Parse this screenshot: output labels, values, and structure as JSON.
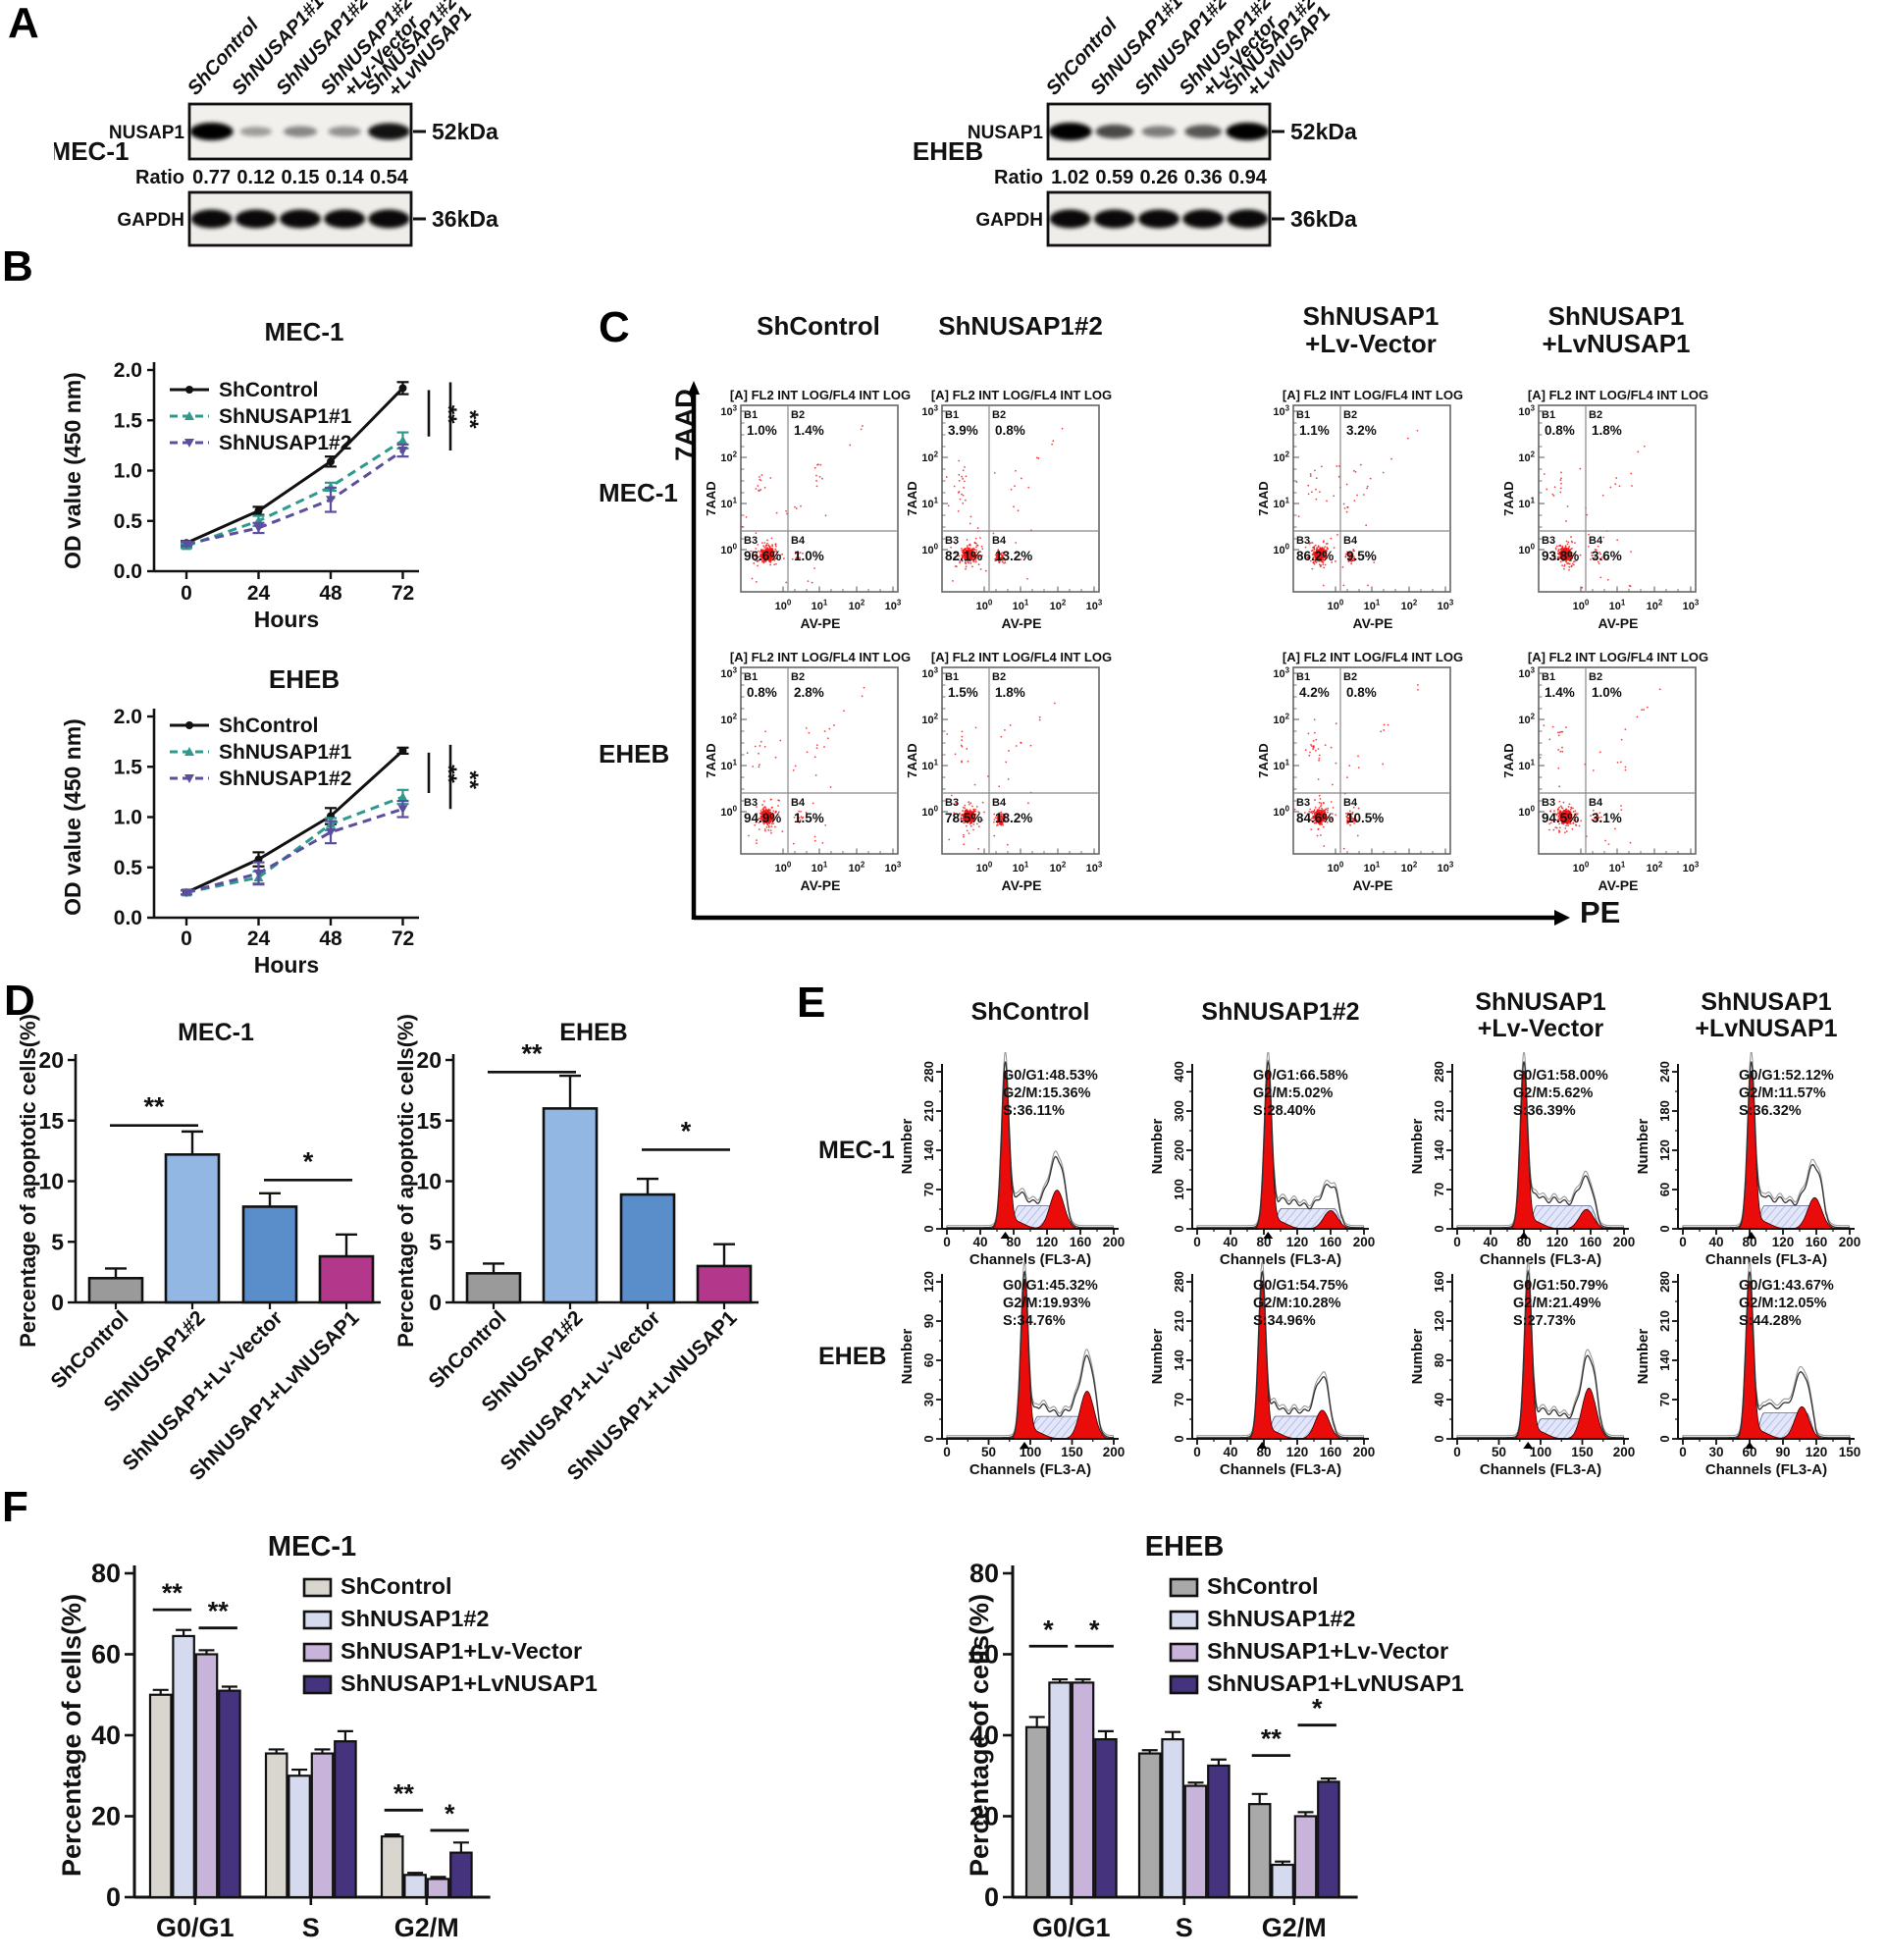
{
  "panels": {
    "a": "A",
    "b": "B",
    "c": "C",
    "d": "D",
    "e": "E",
    "f": "F"
  },
  "panel_a": {
    "lane_labels": [
      [
        "ShControl"
      ],
      [
        "ShNUSAP1#1"
      ],
      [
        "ShNUSAP1#2"
      ],
      [
        "ShNUSAP1#2",
        "+Lv-Vector"
      ],
      [
        "ShNUSAP1#2",
        "+LvNUSAP1"
      ]
    ],
    "blots": [
      {
        "cell_line": "MEC-1",
        "protein_label": "NUSAP1",
        "protein_marker": "52kDa",
        "ratio_label": "Ratio",
        "ratios": [
          "0.77",
          "0.12",
          "0.15",
          "0.14",
          "0.54"
        ],
        "loading_label": "GAPDH",
        "loading_marker": "36kDa",
        "band_intensities": [
          1.0,
          0.18,
          0.3,
          0.25,
          0.9
        ]
      },
      {
        "cell_line": "EHEB",
        "protein_label": "NUSAP1",
        "protein_marker": "52kDa",
        "ratio_label": "Ratio",
        "ratios": [
          "1.02",
          "0.59",
          "0.26",
          "0.36",
          "0.94"
        ],
        "loading_label": "GAPDH",
        "loading_marker": "36kDa",
        "band_intensities": [
          1.0,
          0.62,
          0.35,
          0.55,
          1.0
        ]
      }
    ]
  },
  "panel_c": {
    "columns": [
      [
        "ShControl"
      ],
      [
        "ShNUSAP1#2"
      ],
      [
        "ShNUSAP1",
        "+Lv-Vector"
      ],
      [
        "ShNUSAP1",
        "+LvNUSAP1"
      ]
    ],
    "row_labels": [
      "MEC-1",
      "EHEB"
    ],
    "y_axis_label": "7AAD",
    "x_axis_label": "PE"
  },
  "panel_e": {
    "columns": [
      [
        "ShControl"
      ],
      [
        "ShNUSAP1#2"
      ],
      [
        "ShNUSAP1",
        "+Lv-Vector"
      ],
      [
        "ShNUSAP1",
        "+LvNUSAP1"
      ]
    ],
    "row_labels": [
      "MEC-1",
      "EHEB"
    ]
  },
  "chart_data": [
    {
      "id": "B-MEC1",
      "type": "line",
      "title": "MEC-1",
      "xlabel": "Hours",
      "ylabel": "OD value (450 nm)",
      "x": [
        0,
        24,
        48,
        72
      ],
      "ylim": [
        0,
        2.0
      ],
      "yticks": [
        "0.0",
        "0.5",
        "1.0",
        "1.5",
        "2.0"
      ],
      "series": [
        {
          "name": "ShControl",
          "color": "#111111",
          "dash": false,
          "marker": "circle",
          "values": [
            0.28,
            0.6,
            1.09,
            1.82
          ],
          "errors": [
            0.02,
            0.04,
            0.05,
            0.06
          ]
        },
        {
          "name": "ShNUSAP1#1",
          "color": "#2d9a8c",
          "dash": true,
          "marker": "tri-up",
          "values": [
            0.25,
            0.5,
            0.84,
            1.3
          ],
          "errors": [
            0.02,
            0.05,
            0.04,
            0.08
          ]
        },
        {
          "name": "ShNUSAP1#2",
          "color": "#5c4e9e",
          "dash": true,
          "marker": "tri-down",
          "values": [
            0.27,
            0.43,
            0.71,
            1.2
          ],
          "errors": [
            0.02,
            0.05,
            0.12,
            0.06
          ]
        }
      ],
      "significance": [
        "**",
        "**"
      ]
    },
    {
      "id": "B-EHEB",
      "type": "line",
      "title": "EHEB",
      "xlabel": "Hours",
      "ylabel": "OD value (450 nm)",
      "x": [
        0,
        24,
        48,
        72
      ],
      "ylim": [
        0,
        2.0
      ],
      "yticks": [
        "0.0",
        "0.5",
        "1.0",
        "1.5",
        "2.0"
      ],
      "series": [
        {
          "name": "ShControl",
          "color": "#111111",
          "dash": false,
          "marker": "circle",
          "values": [
            0.25,
            0.58,
            1.01,
            1.66
          ],
          "errors": [
            0.02,
            0.07,
            0.08,
            0.03
          ]
        },
        {
          "name": "ShNUSAP1#1",
          "color": "#2d9a8c",
          "dash": true,
          "marker": "tri-up",
          "values": [
            0.25,
            0.4,
            0.93,
            1.2
          ],
          "errors": [
            0.02,
            0.06,
            0.06,
            0.07
          ]
        },
        {
          "name": "ShNUSAP1#2",
          "color": "#5c4e9e",
          "dash": true,
          "marker": "tri-down",
          "values": [
            0.25,
            0.44,
            0.85,
            1.08
          ],
          "errors": [
            0.02,
            0.11,
            0.11,
            0.08
          ]
        }
      ],
      "significance": [
        "**",
        "**"
      ]
    },
    {
      "id": "D-MEC1",
      "type": "bar",
      "title": "MEC-1",
      "ylabel": "Percentage of apoptotic cells(%)",
      "ylim": [
        0,
        20
      ],
      "yticks": [
        0,
        5,
        10,
        15,
        20
      ],
      "categories": [
        "ShControl",
        "ShNUSAP1#2",
        "ShNUSAP1+Lv-Vector",
        "ShNUSAP1+LvNUSAP1"
      ],
      "values": [
        2.0,
        12.2,
        7.9,
        3.8
      ],
      "errors": [
        0.8,
        1.9,
        1.1,
        1.8
      ],
      "colors": [
        "#9a9a9a",
        "#93b7e3",
        "#5a8ecb",
        "#b3388c"
      ],
      "significance": [
        {
          "pair": [
            0,
            1
          ],
          "label": "**",
          "y": 14.6
        },
        {
          "pair": [
            2,
            3
          ],
          "label": "*",
          "y": 10.1
        }
      ]
    },
    {
      "id": "D-EHEB",
      "type": "bar",
      "title": "EHEB",
      "ylabel": "Percentage of apoptotic cells(%)",
      "ylim": [
        0,
        20
      ],
      "yticks": [
        0,
        5,
        10,
        15,
        20
      ],
      "categories": [
        "ShControl",
        "ShNUSAP1#2",
        "ShNUSAP1+Lv-Vector",
        "ShNUSAP1+LvNUSAP1"
      ],
      "values": [
        2.4,
        16.0,
        8.9,
        3.0
      ],
      "errors": [
        0.8,
        2.7,
        1.3,
        1.8
      ],
      "colors": [
        "#9a9a9a",
        "#93b7e3",
        "#5a8ecb",
        "#b3388c"
      ],
      "significance": [
        {
          "pair": [
            0,
            1
          ],
          "label": "**",
          "y": 19.0
        },
        {
          "pair": [
            2,
            3
          ],
          "label": "*",
          "y": 12.6
        }
      ]
    },
    {
      "id": "F-MEC1",
      "type": "grouped_bar",
      "title": "MEC-1",
      "ylabel": "Percentage of cells(%)",
      "ylim": [
        0,
        80
      ],
      "yticks": [
        0,
        20,
        40,
        60,
        80
      ],
      "categories": [
        "G0/G1",
        "S",
        "G2/M"
      ],
      "series": [
        {
          "name": "ShControl",
          "color": "#d9d6cf",
          "values": [
            50,
            35.5,
            15
          ],
          "errors": [
            1.2,
            1.0,
            0.5
          ]
        },
        {
          "name": "ShNUSAP1#2",
          "color": "#d6daee",
          "values": [
            64.5,
            30,
            5.5
          ],
          "errors": [
            1.5,
            1.5,
            0.5
          ]
        },
        {
          "name": "ShNUSAP1+Lv-Vector",
          "color": "#c8b4da",
          "values": [
            60,
            35.5,
            4.5
          ],
          "errors": [
            1.0,
            1.0,
            0.5
          ]
        },
        {
          "name": "ShNUSAP1+LvNUSAP1",
          "color": "#46337e",
          "values": [
            51,
            38.5,
            11
          ],
          "errors": [
            1.0,
            2.5,
            2.5
          ]
        }
      ],
      "significance": [
        {
          "group": 0,
          "pair": [
            0,
            1
          ],
          "label": "**",
          "y": 71
        },
        {
          "group": 0,
          "pair": [
            2,
            3
          ],
          "label": "**",
          "y": 66.5
        },
        {
          "group": 2,
          "pair": [
            0,
            1
          ],
          "label": "**",
          "y": 21.5
        },
        {
          "group": 2,
          "pair": [
            2,
            3
          ],
          "label": "*",
          "y": 16.5
        }
      ]
    },
    {
      "id": "F-EHEB",
      "type": "grouped_bar",
      "title": "EHEB",
      "ylabel": "Percentage of cells(%)",
      "ylim": [
        0,
        80
      ],
      "yticks": [
        0,
        20,
        40,
        60,
        80
      ],
      "categories": [
        "G0/G1",
        "S",
        "G2/M"
      ],
      "series": [
        {
          "name": "ShControl",
          "color": "#a9a9a9",
          "values": [
            42,
            35.5,
            23
          ],
          "errors": [
            2.5,
            0.8,
            2.5
          ]
        },
        {
          "name": "ShNUSAP1#2",
          "color": "#d6daee",
          "values": [
            53,
            39,
            8
          ],
          "errors": [
            0.8,
            1.8,
            0.8
          ]
        },
        {
          "name": "ShNUSAP1+Lv-Vector",
          "color": "#c8b4da",
          "values": [
            53,
            27.5,
            20
          ],
          "errors": [
            0.8,
            0.8,
            1.0
          ]
        },
        {
          "name": "ShNUSAP1+LvNUSAP1",
          "color": "#46337e",
          "values": [
            39,
            32.5,
            28.5
          ],
          "errors": [
            2.0,
            1.5,
            0.8
          ]
        }
      ],
      "significance": [
        {
          "group": 0,
          "pair": [
            0,
            1
          ],
          "label": "*",
          "y": 62
        },
        {
          "group": 0,
          "pair": [
            2,
            3
          ],
          "label": "*",
          "y": 62
        },
        {
          "group": 2,
          "pair": [
            0,
            1
          ],
          "label": "**",
          "y": 35
        },
        {
          "group": 2,
          "pair": [
            2,
            3
          ],
          "label": "*",
          "y": 42.5
        }
      ]
    },
    {
      "id": "C-MEC1-1",
      "type": "flow_scatter",
      "cell_line": "MEC-1",
      "condition": "ShControl",
      "title": "[A] FL2 INT LOG/FL4 INT LOG",
      "xlabel": "AV-PE",
      "ylabel": "7AAD",
      "quadrants": {
        "B1": "1.0%",
        "B2": "1.4%",
        "B3": "96.6%",
        "B4": "1.0%"
      }
    },
    {
      "id": "C-MEC1-2",
      "type": "flow_scatter",
      "cell_line": "MEC-1",
      "condition": "ShNUSAP1#2",
      "title": "[A] FL2 INT LOG/FL4 INT LOG",
      "xlabel": "AV-PE",
      "ylabel": "7AAD",
      "quadrants": {
        "B1": "3.9%",
        "B2": "0.8%",
        "B3": "82.1%",
        "B4": "13.2%"
      }
    },
    {
      "id": "C-MEC1-3",
      "type": "flow_scatter",
      "cell_line": "MEC-1",
      "condition": "ShNUSAP1+Lv-Vector",
      "title": "[A] FL2 INT LOG/FL4 INT LOG",
      "xlabel": "AV-PE",
      "ylabel": "7AAD",
      "quadrants": {
        "B1": "1.1%",
        "B2": "3.2%",
        "B3": "86.2%",
        "B4": "9.5%"
      }
    },
    {
      "id": "C-MEC1-4",
      "type": "flow_scatter",
      "cell_line": "MEC-1",
      "condition": "ShNUSAP1+LvNUSAP1",
      "title": "[A] FL2 INT LOG/FL4 INT LOG",
      "xlabel": "AV-PE",
      "ylabel": "7AAD",
      "quadrants": {
        "B1": "0.8%",
        "B2": "1.8%",
        "B3": "93.8%",
        "B4": "3.6%"
      }
    },
    {
      "id": "C-EHEB-1",
      "type": "flow_scatter",
      "cell_line": "EHEB",
      "condition": "ShControl",
      "title": "[A] FL2 INT LOG/FL4 INT LOG",
      "xlabel": "AV-PE",
      "ylabel": "7AAD",
      "quadrants": {
        "B1": "0.8%",
        "B2": "2.8%",
        "B3": "94.9%",
        "B4": "1.5%"
      }
    },
    {
      "id": "C-EHEB-2",
      "type": "flow_scatter",
      "cell_line": "EHEB",
      "condition": "ShNUSAP1#2",
      "title": "[A] FL2 INT LOG/FL4 INT LOG",
      "xlabel": "AV-PE",
      "ylabel": "7AAD",
      "quadrants": {
        "B1": "1.5%",
        "B2": "1.8%",
        "B3": "78.5%",
        "B4": "18.2%"
      }
    },
    {
      "id": "C-EHEB-3",
      "type": "flow_scatter",
      "cell_line": "EHEB",
      "condition": "ShNUSAP1+Lv-Vector",
      "title": "[A] FL2 INT LOG/FL4 INT LOG",
      "xlabel": "AV-PE",
      "ylabel": "7AAD",
      "quadrants": {
        "B1": "4.2%",
        "B2": "0.8%",
        "B3": "84.6%",
        "B4": "10.5%"
      }
    },
    {
      "id": "C-EHEB-4",
      "type": "flow_scatter",
      "cell_line": "EHEB",
      "condition": "ShNUSAP1+LvNUSAP1",
      "title": "[A] FL2 INT LOG/FL4 INT LOG",
      "xlabel": "AV-PE",
      "ylabel": "7AAD",
      "quadrants": {
        "B1": "1.4%",
        "B2": "1.0%",
        "B3": "94.5%",
        "B4": "3.1%"
      }
    },
    {
      "id": "E-MEC1-1",
      "type": "cell_cycle_hist",
      "cell_line": "MEC-1",
      "condition": "ShControl",
      "xlabel": "Channels (FL3-A)",
      "ylabel": "Number",
      "stats": {
        "g0g1": "G0/G1:48.53%",
        "g2m": "G2/M:15.36%",
        "s": "S:36.11%"
      },
      "yticks": [
        0,
        70,
        140,
        210,
        280
      ],
      "xticks": [
        0,
        40,
        80,
        120,
        160,
        200
      ],
      "g1_channel": 70,
      "g2_channel": 132
    },
    {
      "id": "E-MEC1-2",
      "type": "cell_cycle_hist",
      "cell_line": "MEC-1",
      "condition": "ShNUSAP1#2",
      "xlabel": "Channels (FL3-A)",
      "ylabel": "Number",
      "stats": {
        "g0g1": "G0/G1:66.58%",
        "g2m": "G2/M:5.02%",
        "s": "S:28.40%"
      },
      "yticks": [
        0,
        100,
        200,
        300,
        400
      ],
      "xticks": [
        0,
        40,
        80,
        120,
        160,
        200
      ],
      "g1_channel": 85,
      "g2_channel": 160
    },
    {
      "id": "E-MEC1-3",
      "type": "cell_cycle_hist",
      "cell_line": "MEC-1",
      "condition": "ShNUSAP1+Lv-Vector",
      "xlabel": "Channels (FL3-A)",
      "ylabel": "Number",
      "stats": {
        "g0g1": "G0/G1:58.00%",
        "g2m": "G2/M:5.62%",
        "s": "S:36.39%"
      },
      "yticks": [
        0,
        70,
        140,
        210,
        280
      ],
      "xticks": [
        0,
        40,
        80,
        120,
        160,
        200
      ],
      "g1_channel": 80,
      "g2_channel": 155
    },
    {
      "id": "E-MEC1-4",
      "type": "cell_cycle_hist",
      "cell_line": "MEC-1",
      "condition": "ShNUSAP1+LvNUSAP1",
      "xlabel": "Channels (FL3-A)",
      "ylabel": "Number",
      "stats": {
        "g0g1": "G0/G1:52.12%",
        "g2m": "G2/M:11.57%",
        "s": "S:36.32%"
      },
      "yticks": [
        0,
        60,
        120,
        180,
        240
      ],
      "xticks": [
        0,
        40,
        80,
        120,
        160,
        200
      ],
      "g1_channel": 82,
      "g2_channel": 158
    },
    {
      "id": "E-EHEB-1",
      "type": "cell_cycle_hist",
      "cell_line": "EHEB",
      "condition": "ShControl",
      "xlabel": "Channels (FL3-A)",
      "ylabel": "Number",
      "stats": {
        "g0g1": "G0/G1:45.32%",
        "g2m": "G2/M:19.93%",
        "s": "S:34.76%"
      },
      "yticks": [
        0,
        30,
        60,
        90,
        120
      ],
      "xticks": [
        0,
        50,
        100,
        150,
        200
      ],
      "g1_channel": 93,
      "g2_channel": 168
    },
    {
      "id": "E-EHEB-2",
      "type": "cell_cycle_hist",
      "cell_line": "EHEB",
      "condition": "ShNUSAP1#2",
      "xlabel": "Channels (FL3-A)",
      "ylabel": "Number",
      "stats": {
        "g0g1": "G0/G1:54.75%",
        "g2m": "G2/M:10.28%",
        "s": "S:34.96%"
      },
      "yticks": [
        0,
        70,
        140,
        210,
        280
      ],
      "xticks": [
        0,
        40,
        80,
        120,
        160,
        200
      ],
      "g1_channel": 78,
      "g2_channel": 150
    },
    {
      "id": "E-EHEB-3",
      "type": "cell_cycle_hist",
      "cell_line": "EHEB",
      "condition": "ShNUSAP1+Lv-Vector",
      "xlabel": "Channels (FL3-A)",
      "ylabel": "Number",
      "stats": {
        "g0g1": "G0/G1:50.79%",
        "g2m": "G2/M:21.49%",
        "s": "S:27.73%"
      },
      "yticks": [
        0,
        40,
        80,
        120,
        160
      ],
      "xticks": [
        0,
        50,
        100,
        150,
        200
      ],
      "g1_channel": 85,
      "g2_channel": 158
    },
    {
      "id": "E-EHEB-4",
      "type": "cell_cycle_hist",
      "cell_line": "EHEB",
      "condition": "ShNUSAP1+LvNUSAP1",
      "xlabel": "Channels (FL3-A)",
      "ylabel": "Number",
      "stats": {
        "g0g1": "G0/G1:43.67%",
        "g2m": "G2/M:12.05%",
        "s": "S:44.28%"
      },
      "yticks": [
        0,
        70,
        140,
        210,
        280
      ],
      "xticks": [
        0,
        30,
        60,
        90,
        120,
        150
      ],
      "g1_channel": 60,
      "g2_channel": 107
    }
  ]
}
